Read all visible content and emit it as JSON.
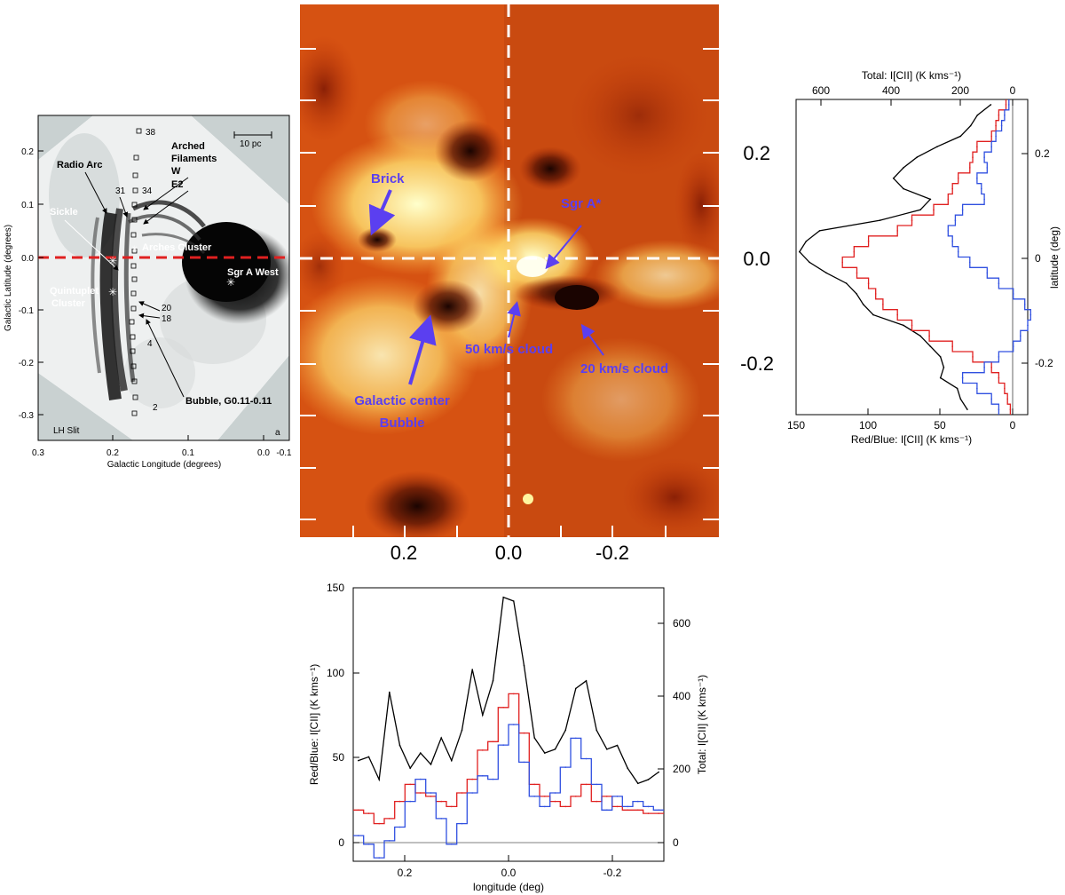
{
  "panel_a": {
    "xlabel": "Galactic Longitude (degrees)",
    "ylabel": "Galactic Latitude (degrees)",
    "xticks": [
      "0.3",
      "0.2",
      "0.1",
      "0.0",
      "-0.1"
    ],
    "yticks": [
      "0.2",
      "0.1",
      "0.0",
      "-0.1",
      "-0.2",
      "-0.3"
    ],
    "scalebar": "10 pc",
    "labels": {
      "radio_arc": "Radio Arc",
      "arched": "Arched",
      "filaments": "Filaments",
      "w": "W",
      "e2": "E2",
      "sickle": "Sickle",
      "arches": "Arches Cluster",
      "sgr_a_west": "Sgr A West",
      "quintuplet": "Quintuplet",
      "cluster": "Cluster",
      "bubble": "Bubble, G0.11-0.11",
      "lh_slit": "LH Slit",
      "panel_letter": "a",
      "n38": "38",
      "n34": "34",
      "n31": "31",
      "n20": "20",
      "n18": "18",
      "n4": "4",
      "n2": "2"
    }
  },
  "map": {
    "xticks": [
      "0.2",
      "0.0",
      "-0.2"
    ],
    "yticks": [
      "0.2",
      "0.0",
      "-0.2"
    ],
    "annotations": {
      "brick": "Brick",
      "sgr_a_star": "Sgr A*",
      "cloud50": "50 km/s cloud",
      "cloud20": "20 km/s cloud",
      "gc_line1": "Galactic center",
      "gc_line2": "Bubble"
    },
    "colors": {
      "dark": "#2a0802",
      "mid": "#c53a0a",
      "bright": "#ffffcc",
      "annotation": "#5b3ff0"
    }
  },
  "chart_data": [
    {
      "type": "line",
      "orientation": "vertical",
      "title": "",
      "ylabel": "latitude (deg)",
      "xlabel_bottom": "Red/Blue: I[CII] (K kms⁻¹)",
      "xlabel_top": "Total: I[CII] (K kms⁻¹)",
      "bottom_ticks": [
        "150",
        "100",
        "50",
        "0"
      ],
      "top_ticks": [
        "600",
        "400",
        "200",
        "0"
      ],
      "right_ticks": [
        "0.2",
        "0",
        "-0.2"
      ],
      "lat_range": [
        -0.3,
        0.3
      ],
      "rb_range": [
        150,
        -10
      ],
      "total_range": [
        650,
        -40
      ],
      "lat": [
        0.29,
        0.27,
        0.25,
        0.23,
        0.21,
        0.19,
        0.17,
        0.15,
        0.13,
        0.11,
        0.09,
        0.07,
        0.05,
        0.03,
        0.01,
        -0.01,
        -0.03,
        -0.05,
        -0.07,
        -0.09,
        -0.11,
        -0.13,
        -0.15,
        -0.17,
        -0.19,
        -0.21,
        -0.23,
        -0.25,
        -0.27,
        -0.29
      ],
      "series": [
        {
          "name": "Total",
          "color": "#000000",
          "values": [
            70,
            110,
            130,
            160,
            230,
            290,
            330,
            360,
            330,
            250,
            280,
            400,
            580,
            620,
            640,
            610,
            560,
            500,
            470,
            450,
            420,
            330,
            280,
            250,
            220,
            210,
            220,
            170,
            160,
            140
          ]
        },
        {
          "name": "Red",
          "color": "#e02020",
          "values": [
            5,
            10,
            12,
            15,
            25,
            28,
            30,
            38,
            42,
            45,
            55,
            70,
            80,
            100,
            110,
            118,
            108,
            100,
            95,
            90,
            80,
            70,
            58,
            42,
            28,
            15,
            10,
            6,
            4,
            2
          ]
        },
        {
          "name": "Blue",
          "color": "#3050e0",
          "values": [
            3,
            6,
            8,
            12,
            15,
            20,
            18,
            25,
            22,
            20,
            35,
            40,
            45,
            42,
            38,
            30,
            18,
            10,
            0,
            -8,
            -12,
            -10,
            -5,
            0,
            10,
            20,
            35,
            25,
            15,
            10
          ]
        }
      ]
    },
    {
      "type": "line",
      "orientation": "horizontal",
      "title": "",
      "xlabel": "longitude (deg)",
      "ylabel_left": "Red/Blue: I[CII] (K kms⁻¹)",
      "ylabel_right": "Total: I[CII] (K kms⁻¹)",
      "x_ticks": [
        "0.2",
        "0.0",
        "-0.2"
      ],
      "left_ticks": [
        "150",
        "100",
        "50",
        "0"
      ],
      "right_ticks": [
        "600",
        "400",
        "200",
        "0"
      ],
      "x_range": [
        0.3,
        -0.3
      ],
      "rb_range": [
        -10,
        150
      ],
      "total_range": [
        -45,
        675
      ],
      "x": [
        0.29,
        0.27,
        0.25,
        0.23,
        0.21,
        0.19,
        0.17,
        0.15,
        0.13,
        0.11,
        0.09,
        0.07,
        0.05,
        0.03,
        0.01,
        -0.01,
        -0.03,
        -0.05,
        -0.07,
        -0.09,
        -0.11,
        -0.13,
        -0.15,
        -0.17,
        -0.19,
        -0.21,
        -0.23,
        -0.25,
        -0.27,
        -0.29
      ],
      "series": [
        {
          "name": "Total",
          "color": "#000000",
          "values": [
            220,
            230,
            170,
            400,
            260,
            200,
            240,
            210,
            280,
            220,
            300,
            460,
            340,
            430,
            650,
            640,
            470,
            280,
            240,
            250,
            300,
            410,
            430,
            300,
            250,
            260,
            200,
            160,
            170,
            190
          ]
        },
        {
          "name": "Red",
          "color": "#e02020",
          "values": [
            20,
            18,
            12,
            15,
            25,
            35,
            30,
            28,
            25,
            22,
            30,
            38,
            55,
            60,
            80,
            88,
            65,
            35,
            28,
            25,
            22,
            28,
            35,
            25,
            28,
            22,
            20,
            20,
            18,
            18
          ]
        },
        {
          "name": "Blue",
          "color": "#3050e0",
          "values": [
            5,
            0,
            -8,
            2,
            10,
            25,
            38,
            30,
            15,
            0,
            12,
            30,
            40,
            38,
            58,
            70,
            48,
            28,
            22,
            30,
            45,
            62,
            50,
            35,
            20,
            28,
            22,
            25,
            22,
            20
          ]
        }
      ]
    }
  ]
}
